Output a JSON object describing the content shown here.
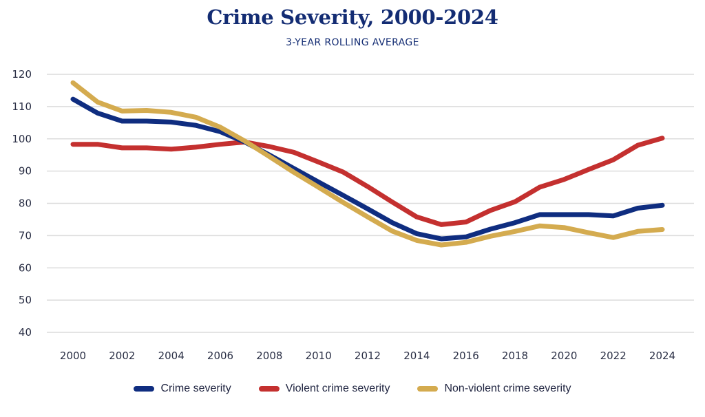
{
  "chart_data": {
    "type": "line",
    "title": "Crime Severity, 2000-2024",
    "subtitle": "3-YEAR ROLLING AVERAGE",
    "xlabel": "",
    "ylabel": "",
    "x": [
      2000,
      2001,
      2002,
      2003,
      2004,
      2005,
      2006,
      2007,
      2008,
      2009,
      2010,
      2011,
      2012,
      2013,
      2014,
      2015,
      2016,
      2017,
      2018,
      2019,
      2020,
      2021,
      2022,
      2023,
      2024
    ],
    "x_tick_labels": [
      "2000",
      "2002",
      "2004",
      "2006",
      "2008",
      "2010",
      "2012",
      "2014",
      "2016",
      "2018",
      "2020",
      "2022",
      "2024"
    ],
    "x_ticks": [
      2000,
      2002,
      2004,
      2006,
      2008,
      2010,
      2012,
      2014,
      2016,
      2018,
      2020,
      2022,
      2024
    ],
    "y_tick_labels": [
      "40",
      "50",
      "60",
      "70",
      "80",
      "90",
      "100",
      "110",
      "120"
    ],
    "y_ticks": [
      40,
      50,
      60,
      70,
      80,
      90,
      100,
      110,
      120
    ],
    "ylim": [
      40,
      120
    ],
    "xlim": [
      2000,
      2024
    ],
    "grid": "horizontal",
    "legend_position": "bottom-center",
    "series": [
      {
        "name": "Crime severity",
        "color": "#0f2d80",
        "values": [
          112.3,
          108.0,
          105.5,
          105.5,
          105.2,
          104.2,
          102.2,
          99.0,
          95.0,
          90.8,
          86.6,
          82.5,
          78.3,
          74.0,
          70.6,
          69.0,
          69.6,
          72.0,
          74.0,
          76.5,
          76.5,
          76.5,
          76.1,
          78.5,
          79.4
        ]
      },
      {
        "name": "Violent crime severity",
        "color": "#c4302f",
        "values": [
          98.3,
          98.3,
          97.2,
          97.2,
          96.8,
          97.4,
          98.3,
          99.0,
          97.6,
          95.8,
          92.8,
          89.7,
          85.2,
          80.4,
          75.8,
          73.4,
          74.2,
          77.8,
          80.5,
          85.0,
          87.4,
          90.5,
          93.5,
          98.0,
          100.2
        ]
      },
      {
        "name": "Non-violent crime severity",
        "color": "#d4ab4f",
        "values": [
          117.4,
          111.4,
          108.6,
          108.8,
          108.2,
          106.7,
          103.6,
          99.3,
          94.5,
          89.6,
          85.0,
          80.3,
          75.8,
          71.4,
          68.5,
          67.1,
          67.9,
          69.8,
          71.3,
          73.0,
          72.5,
          70.9,
          69.4,
          71.3,
          71.9
        ]
      }
    ]
  }
}
